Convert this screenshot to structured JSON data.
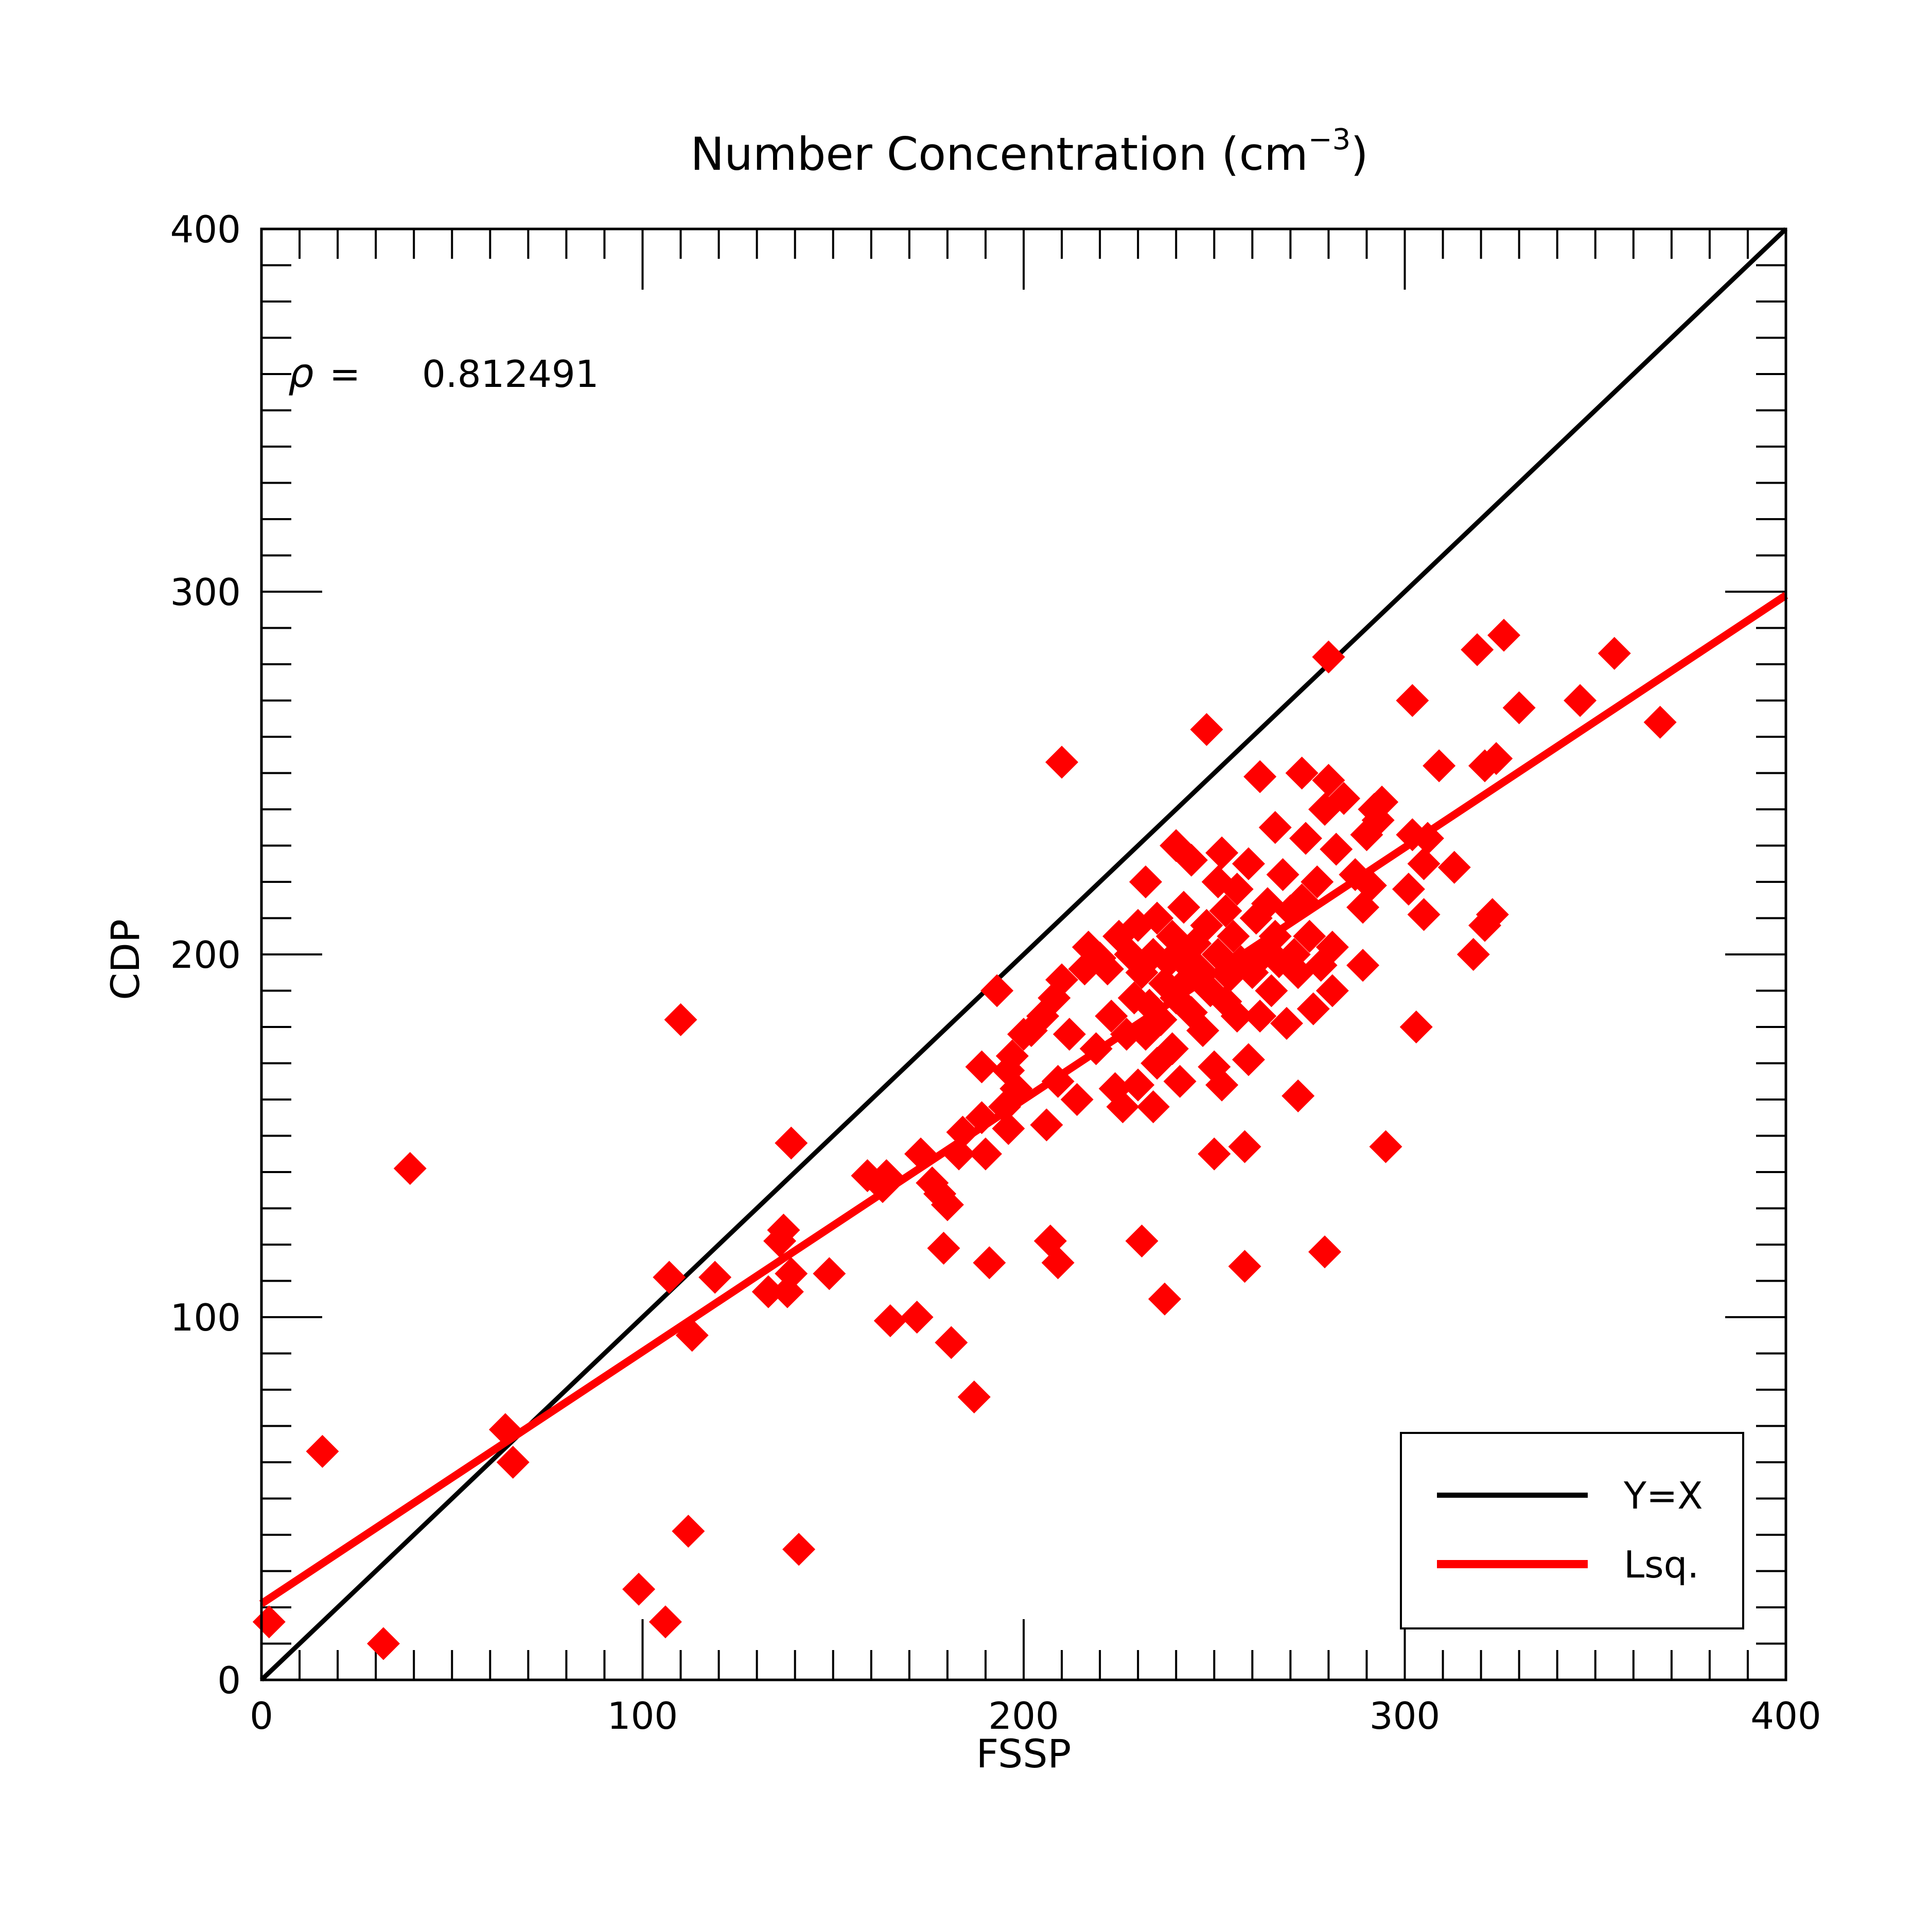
{
  "chart_data": {
    "type": "scatter",
    "title": "Number Concentration (cm",
    "title_sup": "−3",
    "title_end": ")",
    "xlabel": "FSSP",
    "ylabel": "CDP",
    "xlim": [
      0,
      400
    ],
    "ylim": [
      0,
      400
    ],
    "xticks": [
      0,
      100,
      200,
      300,
      400
    ],
    "yticks": [
      0,
      100,
      200,
      300,
      400
    ],
    "xtick_labels": [
      "0",
      "100",
      "200",
      "300",
      "400"
    ],
    "ytick_labels": [
      "0",
      "100",
      "200",
      "300",
      "400"
    ],
    "grid": false,
    "legend_position": "bottom-right",
    "annotation": {
      "symbol": "ρ",
      "eq": "=",
      "value": "0.812491"
    },
    "lines": [
      {
        "name": "Y=X",
        "color": "#000000",
        "x": [
          0,
          400
        ],
        "y": [
          0,
          400
        ]
      },
      {
        "name": "Lsq.",
        "color": "#ff0000",
        "x": [
          0,
          400
        ],
        "y": [
          21,
          299
        ]
      }
    ],
    "series": [
      {
        "marker": "diamond",
        "color": "#ff0000",
        "points": [
          [
            2,
            16
          ],
          [
            16,
            63
          ],
          [
            32,
            10
          ],
          [
            39,
            141
          ],
          [
            64,
            69
          ],
          [
            66,
            60
          ],
          [
            99,
            25
          ],
          [
            106,
            16
          ],
          [
            107,
            111
          ],
          [
            110,
            182
          ],
          [
            112,
            41
          ],
          [
            113,
            95
          ],
          [
            119,
            111
          ],
          [
            133,
            107
          ],
          [
            136,
            121
          ],
          [
            137,
            124
          ],
          [
            138,
            107
          ],
          [
            139,
            112
          ],
          [
            139,
            148
          ],
          [
            141,
            36
          ],
          [
            149,
            112
          ],
          [
            159,
            139
          ],
          [
            163,
            136
          ],
          [
            164,
            139
          ],
          [
            165,
            99
          ],
          [
            172,
            100
          ],
          [
            173,
            145
          ],
          [
            176,
            137
          ],
          [
            178,
            134
          ],
          [
            179,
            119
          ],
          [
            180,
            131
          ],
          [
            181,
            93
          ],
          [
            183,
            145
          ],
          [
            184,
            151
          ],
          [
            187,
            78
          ],
          [
            189,
            169
          ],
          [
            189,
            155
          ],
          [
            190,
            145
          ],
          [
            191,
            115
          ],
          [
            193,
            190
          ],
          [
            195,
            158
          ],
          [
            196,
            152
          ],
          [
            196,
            168
          ],
          [
            197,
            172
          ],
          [
            198,
            163
          ],
          [
            200,
            178
          ],
          [
            202,
            179
          ],
          [
            205,
            183
          ],
          [
            206,
            153
          ],
          [
            207,
            121
          ],
          [
            208,
            188
          ],
          [
            209,
            115
          ],
          [
            209,
            165
          ],
          [
            210,
            253
          ],
          [
            210,
            193
          ],
          [
            212,
            178
          ],
          [
            214,
            160
          ],
          [
            216,
            196
          ],
          [
            217,
            202
          ],
          [
            219,
            174
          ],
          [
            220,
            199
          ],
          [
            222,
            196
          ],
          [
            223,
            183
          ],
          [
            224,
            163
          ],
          [
            225,
            205
          ],
          [
            226,
            158
          ],
          [
            227,
            178
          ],
          [
            228,
            200
          ],
          [
            229,
            188
          ],
          [
            230,
            164
          ],
          [
            230,
            208
          ],
          [
            231,
            195
          ],
          [
            231,
            121
          ],
          [
            232,
            220
          ],
          [
            232,
            178
          ],
          [
            233,
            186
          ],
          [
            234,
            200
          ],
          [
            234,
            158
          ],
          [
            235,
            170
          ],
          [
            235,
            210
          ],
          [
            236,
            182
          ],
          [
            237,
            105
          ],
          [
            237,
            192
          ],
          [
            238,
            198
          ],
          [
            239,
            174
          ],
          [
            239,
            205
          ],
          [
            240,
            188
          ],
          [
            240,
            230
          ],
          [
            241,
            199
          ],
          [
            241,
            165
          ],
          [
            242,
            213
          ],
          [
            243,
            193
          ],
          [
            244,
            184
          ],
          [
            244,
            226
          ],
          [
            245,
            203
          ],
          [
            246,
            196
          ],
          [
            247,
            179
          ],
          [
            248,
            208
          ],
          [
            248,
            262
          ],
          [
            249,
            190
          ],
          [
            250,
            145
          ],
          [
            250,
            169
          ],
          [
            251,
            200
          ],
          [
            251,
            220
          ],
          [
            252,
            164
          ],
          [
            252,
            228
          ],
          [
            253,
            187
          ],
          [
            253,
            212
          ],
          [
            254,
            194
          ],
          [
            255,
            205
          ],
          [
            256,
            218
          ],
          [
            256,
            183
          ],
          [
            257,
            198
          ],
          [
            258,
            147
          ],
          [
            258,
            114
          ],
          [
            259,
            171
          ],
          [
            259,
            225
          ],
          [
            260,
            195
          ],
          [
            261,
            210
          ],
          [
            262,
            249
          ],
          [
            262,
            183
          ],
          [
            263,
            200
          ],
          [
            264,
            214
          ],
          [
            265,
            190
          ],
          [
            266,
            235
          ],
          [
            266,
            205
          ],
          [
            267,
            198
          ],
          [
            268,
            222
          ],
          [
            269,
            181
          ],
          [
            270,
            212
          ],
          [
            271,
            200
          ],
          [
            272,
            195
          ],
          [
            272,
            161
          ],
          [
            273,
            250
          ],
          [
            273,
            215
          ],
          [
            274,
            232
          ],
          [
            275,
            205
          ],
          [
            276,
            185
          ],
          [
            277,
            220
          ],
          [
            278,
            197
          ],
          [
            279,
            118
          ],
          [
            279,
            240
          ],
          [
            280,
            248
          ],
          [
            280,
            282
          ],
          [
            281,
            190
          ],
          [
            281,
            202
          ],
          [
            282,
            229
          ],
          [
            284,
            243
          ],
          [
            287,
            222
          ],
          [
            289,
            213
          ],
          [
            289,
            197
          ],
          [
            290,
            233
          ],
          [
            291,
            219
          ],
          [
            292,
            240
          ],
          [
            293,
            237
          ],
          [
            294,
            242
          ],
          [
            295,
            147
          ],
          [
            301,
            218
          ],
          [
            302,
            270
          ],
          [
            302,
            233
          ],
          [
            303,
            180
          ],
          [
            305,
            211
          ],
          [
            305,
            225
          ],
          [
            306,
            232
          ],
          [
            309,
            252
          ],
          [
            313,
            224
          ],
          [
            318,
            200
          ],
          [
            319,
            284
          ],
          [
            321,
            208
          ],
          [
            321,
            252
          ],
          [
            323,
            211
          ],
          [
            324,
            254
          ],
          [
            326,
            288
          ],
          [
            330,
            268
          ],
          [
            346,
            270
          ],
          [
            355,
            283
          ],
          [
            367,
            264
          ]
        ]
      }
    ]
  }
}
